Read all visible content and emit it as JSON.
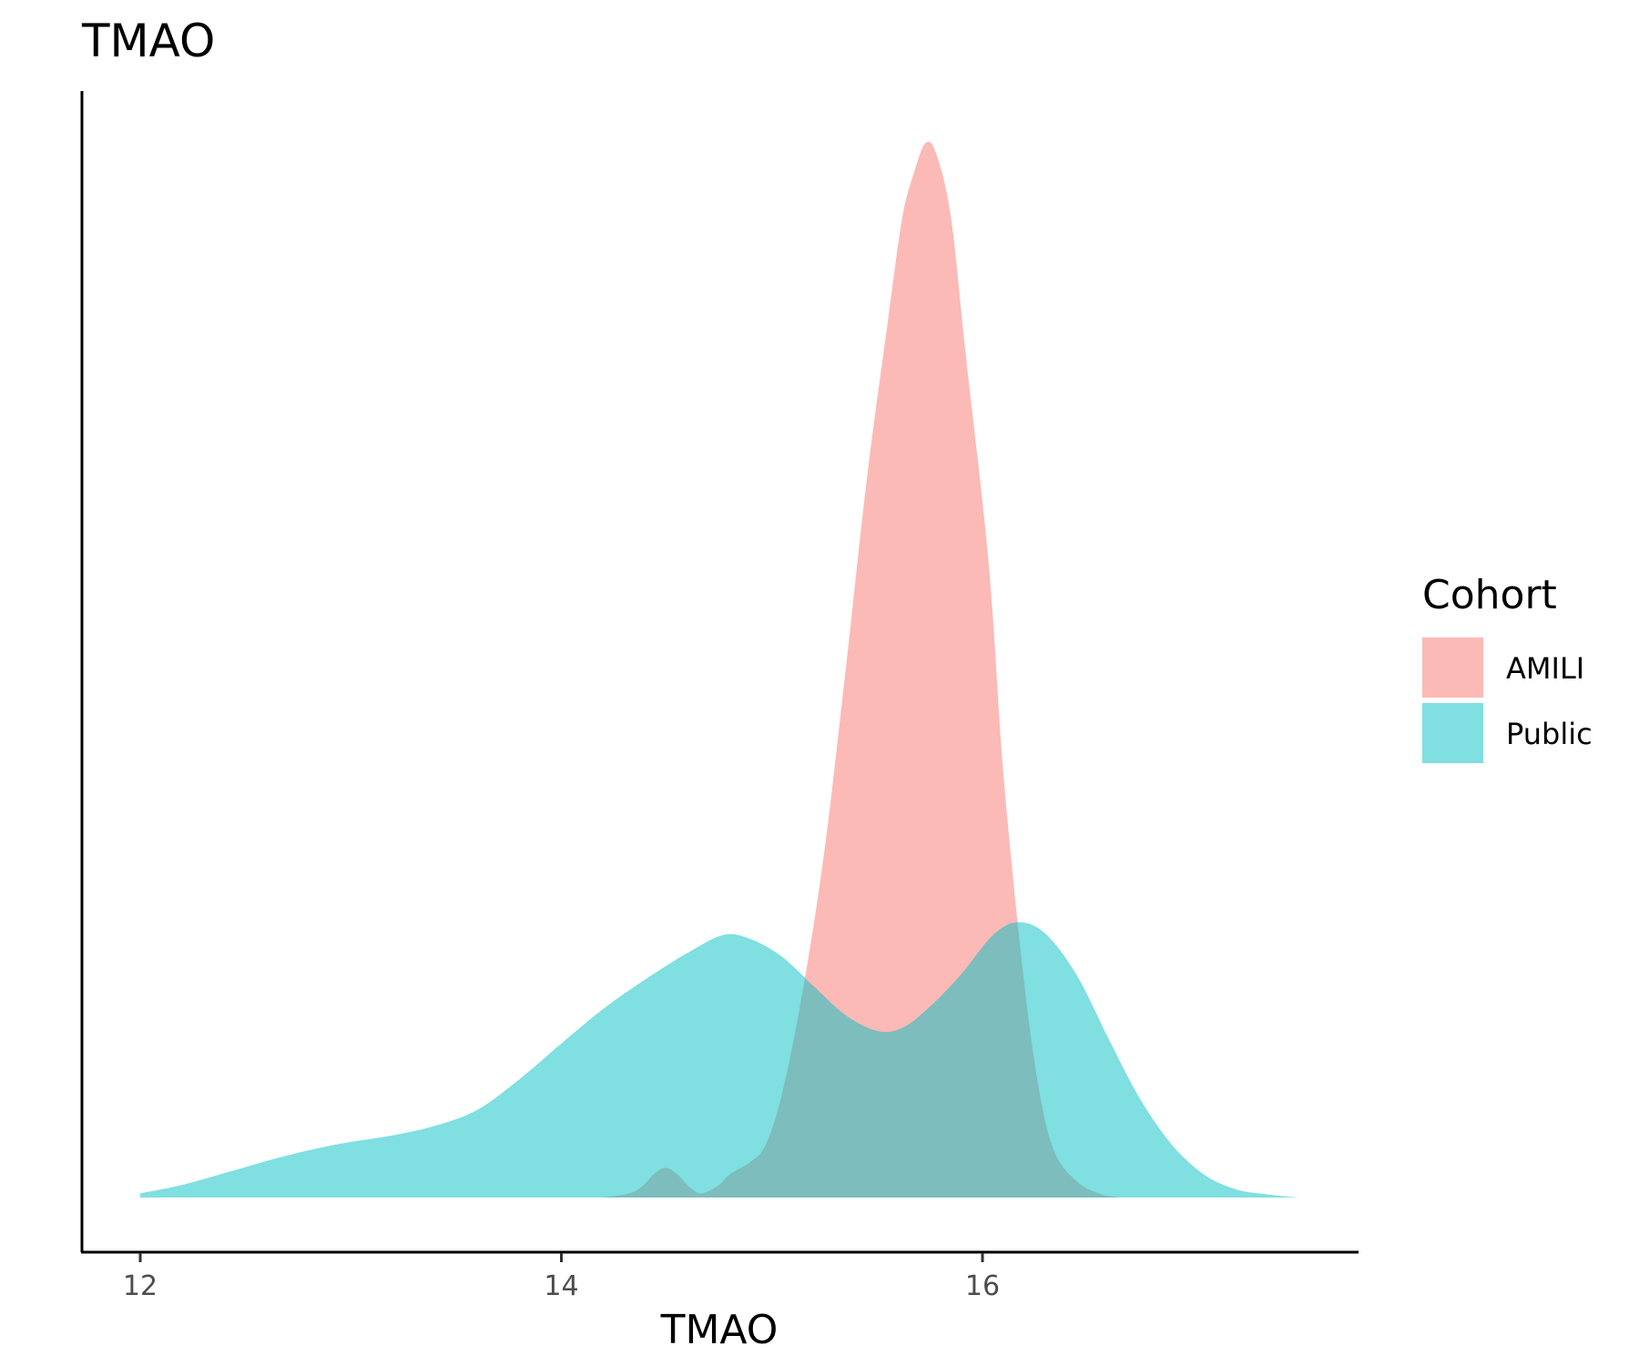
{
  "chart_data": {
    "type": "area",
    "title": "TMAO",
    "xlabel": "TMAO",
    "ylabel": "",
    "xlim": [
      11.86,
      18.91
    ],
    "ylim": [
      0,
      1.0
    ],
    "x_ticks": [
      12,
      14,
      16
    ],
    "x_tick_labels": [
      "12",
      "14",
      "16"
    ],
    "y_ticks_shown": false,
    "grid": false,
    "legend": {
      "title": "Cohort",
      "placement": "right",
      "entries": [
        "AMILI",
        "Public"
      ]
    },
    "series": [
      {
        "name": "AMILI",
        "color": "#F8766D",
        "opacity": 0.5,
        "points": [
          [
            14.2,
            0.0
          ],
          [
            14.35,
            0.006
          ],
          [
            14.45,
            0.024
          ],
          [
            14.5,
            0.028
          ],
          [
            14.55,
            0.022
          ],
          [
            14.62,
            0.008
          ],
          [
            14.67,
            0.004
          ],
          [
            14.75,
            0.012
          ],
          [
            14.8,
            0.022
          ],
          [
            14.9,
            0.034
          ],
          [
            14.97,
            0.05
          ],
          [
            15.05,
            0.1
          ],
          [
            15.15,
            0.2
          ],
          [
            15.25,
            0.33
          ],
          [
            15.35,
            0.5
          ],
          [
            15.45,
            0.68
          ],
          [
            15.55,
            0.83
          ],
          [
            15.62,
            0.93
          ],
          [
            15.68,
            0.975
          ],
          [
            15.73,
            1.0
          ],
          [
            15.78,
            0.99
          ],
          [
            15.85,
            0.93
          ],
          [
            15.92,
            0.8
          ],
          [
            16.03,
            0.6
          ],
          [
            16.1,
            0.4
          ],
          [
            16.2,
            0.2
          ],
          [
            16.28,
            0.09
          ],
          [
            16.35,
            0.04
          ],
          [
            16.45,
            0.015
          ],
          [
            16.55,
            0.004
          ],
          [
            16.65,
            0.0
          ]
        ]
      },
      {
        "name": "Public",
        "color": "#00BFC4",
        "opacity": 0.5,
        "points": [
          [
            12.0,
            0.004
          ],
          [
            12.2,
            0.012
          ],
          [
            12.45,
            0.026
          ],
          [
            12.7,
            0.04
          ],
          [
            12.95,
            0.051
          ],
          [
            13.2,
            0.059
          ],
          [
            13.4,
            0.068
          ],
          [
            13.6,
            0.083
          ],
          [
            13.8,
            0.112
          ],
          [
            14.0,
            0.146
          ],
          [
            14.2,
            0.179
          ],
          [
            14.4,
            0.207
          ],
          [
            14.6,
            0.232
          ],
          [
            14.77,
            0.249
          ],
          [
            14.9,
            0.245
          ],
          [
            15.05,
            0.228
          ],
          [
            15.2,
            0.2
          ],
          [
            15.35,
            0.173
          ],
          [
            15.5,
            0.158
          ],
          [
            15.62,
            0.161
          ],
          [
            15.75,
            0.181
          ],
          [
            15.9,
            0.212
          ],
          [
            16.05,
            0.249
          ],
          [
            16.17,
            0.261
          ],
          [
            16.3,
            0.25
          ],
          [
            16.45,
            0.21
          ],
          [
            16.6,
            0.15
          ],
          [
            16.75,
            0.093
          ],
          [
            16.9,
            0.05
          ],
          [
            17.05,
            0.022
          ],
          [
            17.2,
            0.008
          ],
          [
            17.35,
            0.003
          ],
          [
            17.5,
            0.0
          ]
        ]
      }
    ]
  }
}
